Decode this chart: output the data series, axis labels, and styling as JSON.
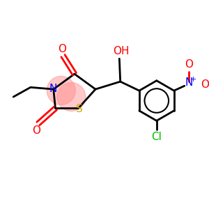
{
  "bg_color": "#ffffff",
  "atom_colors": {
    "O": "#ff0000",
    "N": "#0000ff",
    "S": "#ccaa00",
    "Cl": "#00bb00",
    "C": "#000000"
  },
  "highlight_color": "#ff8888",
  "highlight_alpha": 0.45
}
